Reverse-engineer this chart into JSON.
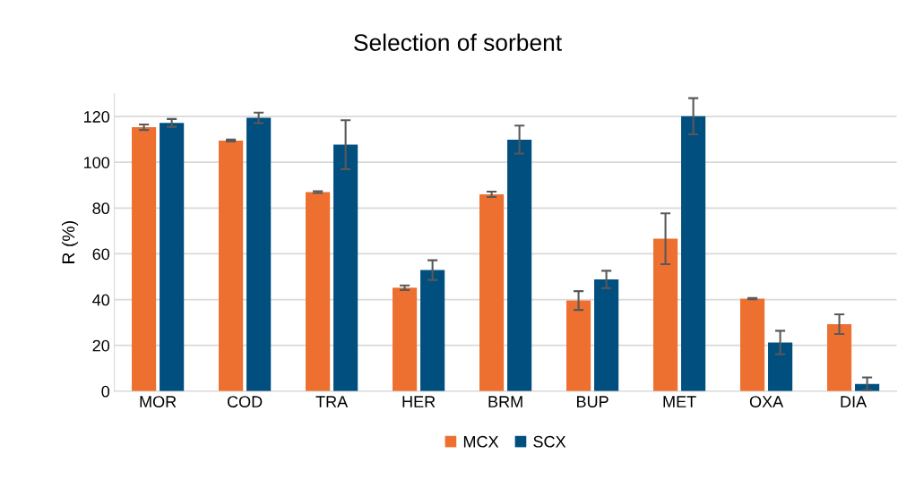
{
  "chart_data": {
    "type": "bar",
    "title": "Selection of sorbent",
    "ylabel": "R (%)",
    "categories": [
      "MOR",
      "COD",
      "TRA",
      "HER",
      "BRM",
      "BUP",
      "MET",
      "OXA",
      "DIA"
    ],
    "series": [
      {
        "name": "MCX",
        "color": "#ed7030",
        "values": [
          115.3,
          109.5,
          87.0,
          45.2,
          86.0,
          39.6,
          66.6,
          40.4,
          29.3
        ],
        "errors": [
          1.2,
          0.4,
          0.4,
          1.0,
          1.2,
          4.1,
          11.1,
          0.3,
          4.3
        ]
      },
      {
        "name": "SCX",
        "color": "#004f7f",
        "values": [
          117.2,
          119.4,
          107.7,
          52.9,
          109.9,
          48.8,
          120.1,
          21.3,
          3.2
        ],
        "errors": [
          1.7,
          2.3,
          10.7,
          4.3,
          6.1,
          3.8,
          7.9,
          5.1,
          2.8
        ]
      }
    ],
    "ylim": [
      0,
      130
    ],
    "yticks": [
      0,
      20,
      40,
      60,
      80,
      100,
      120
    ],
    "grid": "y",
    "legend": "bottom"
  }
}
